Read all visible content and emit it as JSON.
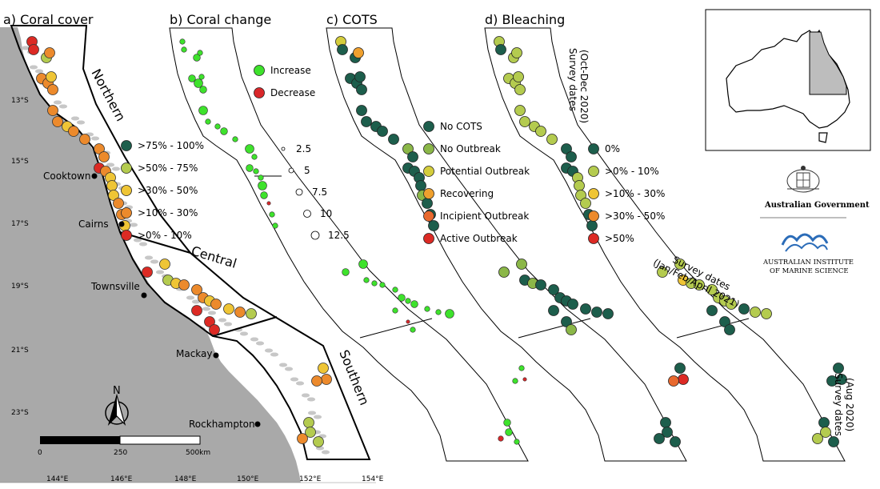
{
  "panels": [
    {
      "title": "a) Coral cover"
    },
    {
      "title": "b) Coral change"
    },
    {
      "title": "c) COTS"
    },
    {
      "title": "d) Bleaching"
    }
  ],
  "regions": [
    "Northern",
    "Central",
    "Southern"
  ],
  "cities": [
    "Cooktown",
    "Cairns",
    "Townsville",
    "Mackay",
    "Rockhampton"
  ],
  "lat_ticks": [
    "13°S",
    "15°S",
    "17°S",
    "19°S",
    "21°S",
    "23°S"
  ],
  "lon_ticks": [
    "144°E",
    "146°E",
    "148°E",
    "150°E",
    "152°E",
    "154°E"
  ],
  "scale_bar": {
    "labels": [
      "0",
      "250",
      "500km"
    ]
  },
  "north_arrow": {
    "label": "N"
  },
  "legends": {
    "coral_cover": [
      {
        "label": ">75% - 100%",
        "color": "#1d5e4c"
      },
      {
        "label": ">50% - 75%",
        "color": "#b4cb4f"
      },
      {
        "label": ">30% - 50%",
        "color": "#efc535"
      },
      {
        "label": ">10% - 30%",
        "color": "#ec8a2c"
      },
      {
        "label": ">0% - 10%",
        "color": "#dc2a24"
      }
    ],
    "coral_change_direction": [
      {
        "label": "Increase",
        "color": "#3ee22c"
      },
      {
        "label": "Decrease",
        "color": "#d9272a"
      }
    ],
    "coral_change_size": [
      "2.5",
      "5",
      "7.5",
      "10",
      "12.5"
    ],
    "cots": [
      {
        "label": "No COTS",
        "color": "#1d5e4c"
      },
      {
        "label": "No Outbreak",
        "color": "#8bb748"
      },
      {
        "label": "Potential Outbreak",
        "color": "#d4cd3c"
      },
      {
        "label": "Recovering",
        "color": "#efa02e"
      },
      {
        "label": "Incipient Outbreak",
        "color": "#e8692e"
      },
      {
        "label": "Active Outbreak",
        "color": "#dc2a24"
      }
    ],
    "bleaching": [
      {
        "label": "0%",
        "color": "#1d5e4c"
      },
      {
        "label": ">0% - 10%",
        "color": "#b4cb4f"
      },
      {
        "label": ">10% - 30%",
        "color": "#efc535"
      },
      {
        "label": ">30% - 50%",
        "color": "#ec8a2c"
      },
      {
        "label": ">50%",
        "color": "#dc2a24"
      }
    ]
  },
  "survey_dates": {
    "northern": [
      "Survey dates",
      "(Oct-Dec 2020)"
    ],
    "central": [
      "Survey dates",
      "(Jan/Feb/April 2021)"
    ],
    "southern": [
      "Survey dates",
      "(Aug 2020)"
    ]
  },
  "logos": {
    "australian_government": "Australian Government",
    "aims_line1": "Australian Institute",
    "aims_line2": "of Marine Science"
  },
  "colors": {
    "land": "#a9a9a9",
    "reef": "#c6c6c6",
    "inset_land": "#ffffff",
    "inset_gbr": "#bdbdbd"
  }
}
